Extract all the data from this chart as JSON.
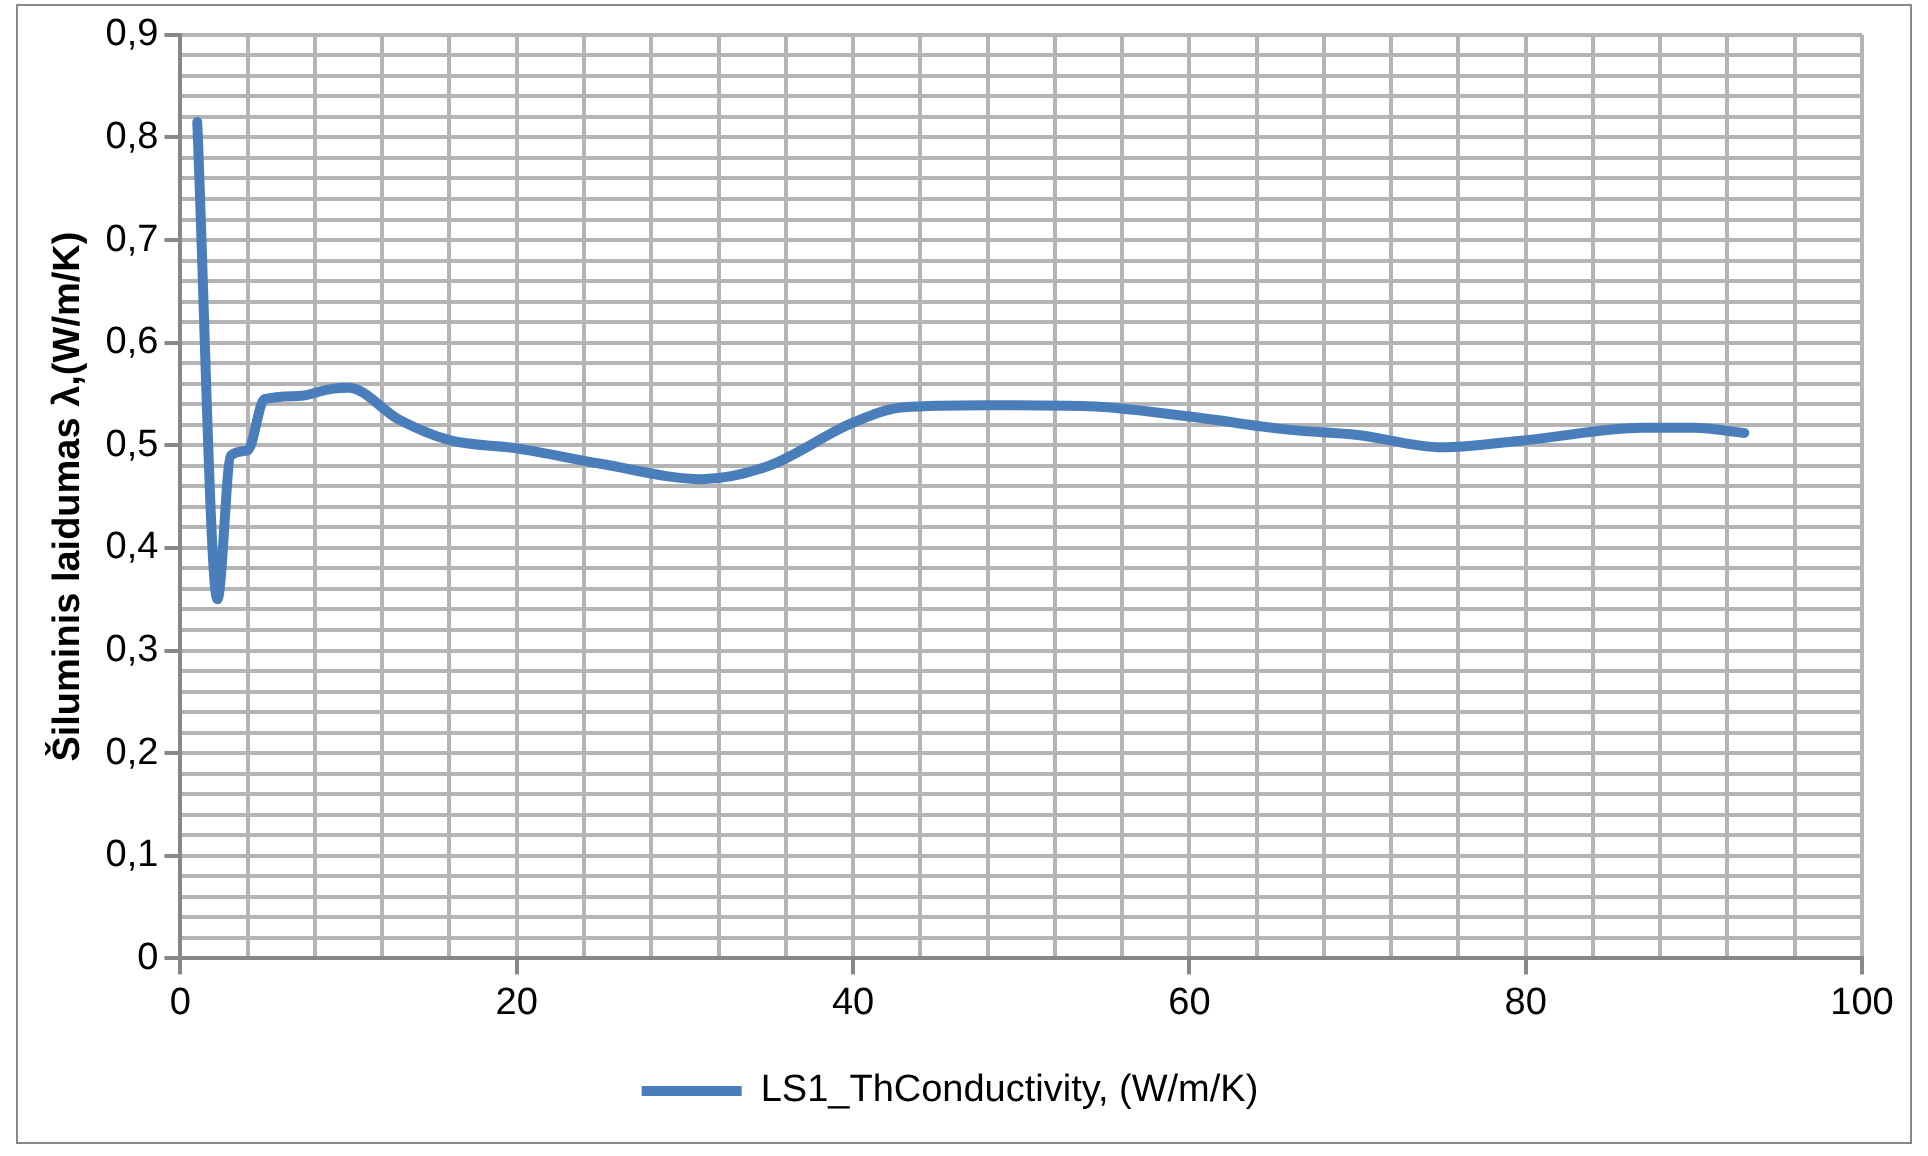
{
  "chart_data": {
    "type": "line",
    "ylabel": "Šiluminis laidumas λ,(W/m/K)",
    "x": [
      1,
      2.2,
      3,
      4,
      5,
      7,
      9,
      10,
      13,
      16,
      20,
      25,
      31,
      35,
      40,
      43,
      48,
      54,
      60,
      66,
      70,
      75,
      80,
      87,
      90,
      93
    ],
    "series": [
      {
        "name": "LS1_ThConductivity, (W/m/K)",
        "color": "#4a7ebb",
        "values": [
          0.815,
          0.35,
          0.49,
          0.495,
          0.545,
          0.548,
          0.555,
          0.556,
          0.525,
          0.505,
          0.497,
          0.482,
          0.467,
          0.48,
          0.522,
          0.537,
          0.539,
          0.538,
          0.528,
          0.515,
          0.51,
          0.498,
          0.505,
          0.517,
          0.517,
          0.512
        ]
      }
    ],
    "xlim": [
      0,
      100
    ],
    "xticks": [
      0,
      {
        "value": 4,
        "label": null
      },
      {
        "value": 8,
        "label": null
      },
      {
        "value": 12,
        "label": null
      },
      {
        "value": 16,
        "label": null
      },
      20,
      {
        "value": 24,
        "label": null
      },
      {
        "value": 28,
        "label": null
      },
      {
        "value": 32,
        "label": null
      },
      {
        "value": 36,
        "label": null
      },
      40,
      {
        "value": 44,
        "label": null
      },
      {
        "value": 48,
        "label": null
      },
      {
        "value": 52,
        "label": null
      },
      {
        "value": 56,
        "label": null
      },
      60,
      {
        "value": 64,
        "label": null
      },
      {
        "value": 68,
        "label": null
      },
      {
        "value": 72,
        "label": null
      },
      {
        "value": 76,
        "label": null
      },
      80,
      {
        "value": 84,
        "label": null
      },
      {
        "value": 88,
        "label": null
      },
      {
        "value": 92,
        "label": null
      },
      {
        "value": 96,
        "label": null
      },
      100
    ],
    "ylim": [
      0,
      0.9
    ],
    "yticks": [
      0,
      {
        "value": 0.02,
        "label": null
      },
      {
        "value": 0.04,
        "label": null
      },
      {
        "value": 0.06,
        "label": null
      },
      {
        "value": 0.08,
        "label": null
      },
      {
        "value": 0.1,
        "label": "0,1"
      },
      {
        "value": 0.12,
        "label": null
      },
      {
        "value": 0.14,
        "label": null
      },
      {
        "value": 0.16,
        "label": null
      },
      {
        "value": 0.18,
        "label": null
      },
      {
        "value": 0.2,
        "label": "0,2"
      },
      {
        "value": 0.22,
        "label": null
      },
      {
        "value": 0.24,
        "label": null
      },
      {
        "value": 0.26,
        "label": null
      },
      {
        "value": 0.28,
        "label": null
      },
      {
        "value": 0.3,
        "label": "0,3"
      },
      {
        "value": 0.32,
        "label": null
      },
      {
        "value": 0.34,
        "label": null
      },
      {
        "value": 0.36,
        "label": null
      },
      {
        "value": 0.38,
        "label": null
      },
      {
        "value": 0.4,
        "label": "0,4"
      },
      {
        "value": 0.42,
        "label": null
      },
      {
        "value": 0.44,
        "label": null
      },
      {
        "value": 0.46,
        "label": null
      },
      {
        "value": 0.48,
        "label": null
      },
      {
        "value": 0.5,
        "label": "0,5"
      },
      {
        "value": 0.52,
        "label": null
      },
      {
        "value": 0.54,
        "label": null
      },
      {
        "value": 0.56,
        "label": null
      },
      {
        "value": 0.58,
        "label": null
      },
      {
        "value": 0.6,
        "label": "0,6"
      },
      {
        "value": 0.62,
        "label": null
      },
      {
        "value": 0.64,
        "label": null
      },
      {
        "value": 0.66,
        "label": null
      },
      {
        "value": 0.68,
        "label": null
      },
      {
        "value": 0.7,
        "label": "0,7"
      },
      {
        "value": 0.72,
        "label": null
      },
      {
        "value": 0.74,
        "label": null
      },
      {
        "value": 0.76,
        "label": null
      },
      {
        "value": 0.78,
        "label": null
      },
      {
        "value": 0.8,
        "label": "0,8"
      },
      {
        "value": 0.82,
        "label": null
      },
      {
        "value": 0.84,
        "label": null
      },
      {
        "value": 0.86,
        "label": null
      },
      {
        "value": 0.88,
        "label": null
      },
      {
        "value": 0.9,
        "label": "0,9"
      }
    ],
    "grid": true,
    "legend": "bottom",
    "marker": "none",
    "line_style": "solid"
  }
}
